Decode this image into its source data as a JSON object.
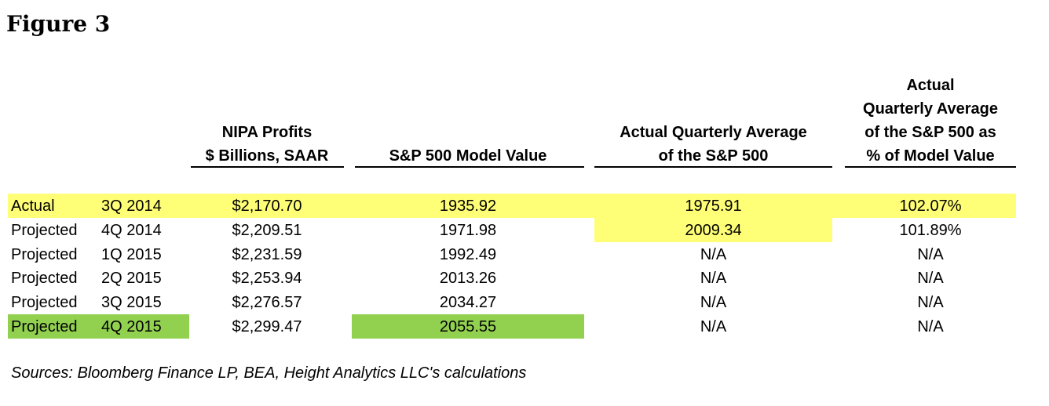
{
  "title": "Figure 3",
  "columns": {
    "profits": [
      "NIPA Profits",
      "$ Billions, SAAR"
    ],
    "model": [
      "S&P 500 Model Value"
    ],
    "actual_avg": [
      "Actual Quarterly Average",
      "of the S&P 500"
    ],
    "pct": [
      "Actual",
      "Quarterly Average",
      "of the S&P 500 as",
      "% of Model Value"
    ]
  },
  "rows": [
    {
      "status": "Actual",
      "quarter": "3Q 2014",
      "profits": "$2,170.70",
      "model": "1935.92",
      "actual_avg": "1975.91",
      "pct": "102.07%"
    },
    {
      "status": "Projected",
      "quarter": "4Q 2014",
      "profits": "$2,209.51",
      "model": "1971.98",
      "actual_avg": "2009.34",
      "pct": "101.89%"
    },
    {
      "status": "Projected",
      "quarter": "1Q 2015",
      "profits": "$2,231.59",
      "model": "1992.49",
      "actual_avg": "N/A",
      "pct": "N/A"
    },
    {
      "status": "Projected",
      "quarter": "2Q 2015",
      "profits": "$2,253.94",
      "model": "2013.26",
      "actual_avg": "N/A",
      "pct": "N/A"
    },
    {
      "status": "Projected",
      "quarter": "3Q 2015",
      "profits": "$2,276.57",
      "model": "2034.27",
      "actual_avg": "N/A",
      "pct": "N/A"
    },
    {
      "status": "Projected",
      "quarter": "4Q 2015",
      "profits": "$2,299.47",
      "model": "2055.55",
      "actual_avg": "N/A",
      "pct": "N/A"
    }
  ],
  "highlights": {
    "yellow": "#ffff77",
    "green": "#92d050"
  },
  "sources": "Sources: Bloomberg Finance LP, BEA, Height Analytics LLC's calculations"
}
